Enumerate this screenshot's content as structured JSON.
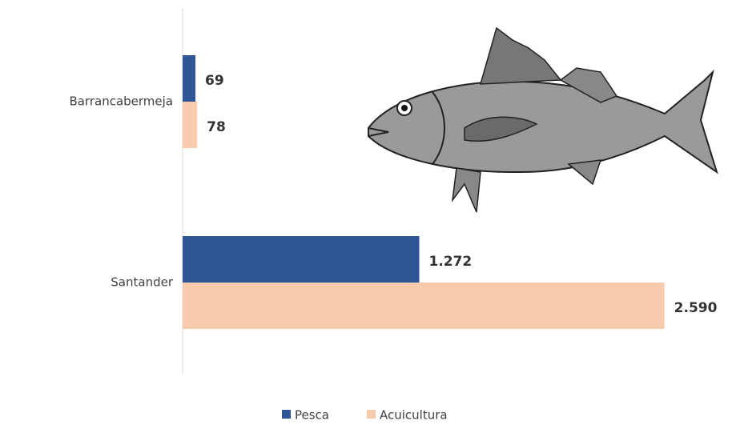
{
  "chart_data": {
    "type": "hbar",
    "categories": [
      "Barrancabermeja",
      "Santander"
    ],
    "series": [
      {
        "name": "Pesca",
        "color": "#2f5597",
        "values": [
          69,
          1272
        ],
        "value_labels": [
          "69",
          "1.272"
        ]
      },
      {
        "name": "Acuicultura",
        "color": "#f8cbad",
        "values": [
          78,
          2590
        ],
        "value_labels": [
          "78",
          "2.590"
        ]
      }
    ],
    "xlim": [
      0,
      2600
    ]
  }
}
